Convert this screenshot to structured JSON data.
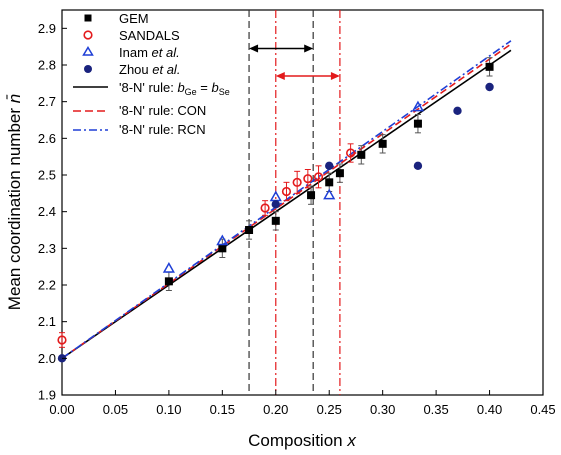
{
  "chart_data": {
    "type": "scatter",
    "xlabel": "Composition",
    "xlabel_var": "x",
    "ylabel": "Mean coordination number",
    "ylabel_var": "n̄",
    "xlim": [
      0,
      0.45
    ],
    "ylim": [
      1.9,
      2.95
    ],
    "xticks": [
      "0.00",
      "0.05",
      "0.10",
      "0.15",
      "0.20",
      "0.25",
      "0.30",
      "0.35",
      "0.40",
      "0.45"
    ],
    "yticks": [
      "1.9",
      "2.0",
      "2.1",
      "2.2",
      "2.3",
      "2.4",
      "2.5",
      "2.6",
      "2.7",
      "2.8",
      "2.9"
    ],
    "legend_position": "top-left",
    "series": [
      {
        "name": "GEM",
        "marker": "filled-square",
        "color": "#000000",
        "points": [
          {
            "x": 0.1,
            "y": 2.21,
            "err": 0.025
          },
          {
            "x": 0.15,
            "y": 2.3,
            "err": 0.025
          },
          {
            "x": 0.175,
            "y": 2.35,
            "err": 0.025
          },
          {
            "x": 0.2,
            "y": 2.375,
            "err": 0.025
          },
          {
            "x": 0.233,
            "y": 2.445,
            "err": 0.025
          },
          {
            "x": 0.25,
            "y": 2.48,
            "err": 0.025
          },
          {
            "x": 0.26,
            "y": 2.505,
            "err": 0.025
          },
          {
            "x": 0.28,
            "y": 2.555,
            "err": 0.025
          },
          {
            "x": 0.3,
            "y": 2.585,
            "err": 0.025
          },
          {
            "x": 0.333,
            "y": 2.64,
            "err": 0.025
          },
          {
            "x": 0.4,
            "y": 2.795,
            "err": 0.025
          }
        ]
      },
      {
        "name": "SANDALS",
        "marker": "open-circle",
        "color": "#e31a1c",
        "points": [
          {
            "x": 0.0,
            "y": 2.05,
            "err": 0.02
          },
          {
            "x": 0.19,
            "y": 2.41,
            "err": 0.02
          },
          {
            "x": 0.21,
            "y": 2.455,
            "err": 0.025
          },
          {
            "x": 0.22,
            "y": 2.48,
            "err": 0.03
          },
          {
            "x": 0.23,
            "y": 2.49,
            "err": 0.025
          },
          {
            "x": 0.24,
            "y": 2.495,
            "err": 0.03
          },
          {
            "x": 0.27,
            "y": 2.56,
            "err": 0.025
          }
        ]
      },
      {
        "name": "Inam et al.",
        "name_plain": "Inam ",
        "name_italic": "et al.",
        "marker": "open-triangle",
        "color": "#1f3fd6",
        "points": [
          {
            "x": 0.1,
            "y": 2.245
          },
          {
            "x": 0.15,
            "y": 2.32
          },
          {
            "x": 0.2,
            "y": 2.44
          },
          {
            "x": 0.25,
            "y": 2.445
          },
          {
            "x": 0.333,
            "y": 2.685
          }
        ]
      },
      {
        "name": "Zhou et al.",
        "name_plain": "Zhou ",
        "name_italic": "et al.",
        "marker": "filled-circle",
        "color": "#1a237e",
        "points": [
          {
            "x": 0.0,
            "y": 2.0
          },
          {
            "x": 0.2,
            "y": 2.42
          },
          {
            "x": 0.25,
            "y": 2.525
          },
          {
            "x": 0.333,
            "y": 2.525
          },
          {
            "x": 0.37,
            "y": 2.675
          },
          {
            "x": 0.4,
            "y": 2.74
          }
        ]
      }
    ],
    "lines": [
      {
        "name": "'8-N' rule: bGe = bSe",
        "legend_plain": "'8-N' rule: ",
        "legend_b1": "b",
        "legend_sub1": "Ge",
        "legend_eq": " = ",
        "legend_b2": "b",
        "legend_sub2": "Se",
        "style": "solid",
        "color": "#000000",
        "x": [
          0,
          0.42
        ],
        "y": [
          2.0,
          2.84
        ]
      },
      {
        "name": "'8-N' rule: CON",
        "style": "dashed",
        "color": "#e31a1c",
        "x": [
          0,
          0.42
        ],
        "y": [
          2.0,
          2.857
        ]
      },
      {
        "name": "'8-N' rule: RCN",
        "style": "dashdot",
        "color": "#1f3fd6",
        "x": [
          0,
          0.42
        ],
        "y": [
          2.0,
          2.866
        ]
      }
    ],
    "vertical_lines": [
      {
        "x": 0.175,
        "style": "dashed",
        "color": "#333333"
      },
      {
        "x": 0.235,
        "style": "dashed",
        "color": "#333333"
      },
      {
        "x": 0.2,
        "style": "dashdot",
        "color": "#e31a1c"
      },
      {
        "x": 0.26,
        "style": "dashdot",
        "color": "#e31a1c"
      }
    ],
    "range_arrows": [
      {
        "x_from": 0.175,
        "x_to": 0.235,
        "y": 2.845,
        "color": "#000000"
      },
      {
        "x_from": 0.2,
        "x_to": 0.26,
        "y": 2.77,
        "color": "#e31a1c"
      }
    ]
  }
}
